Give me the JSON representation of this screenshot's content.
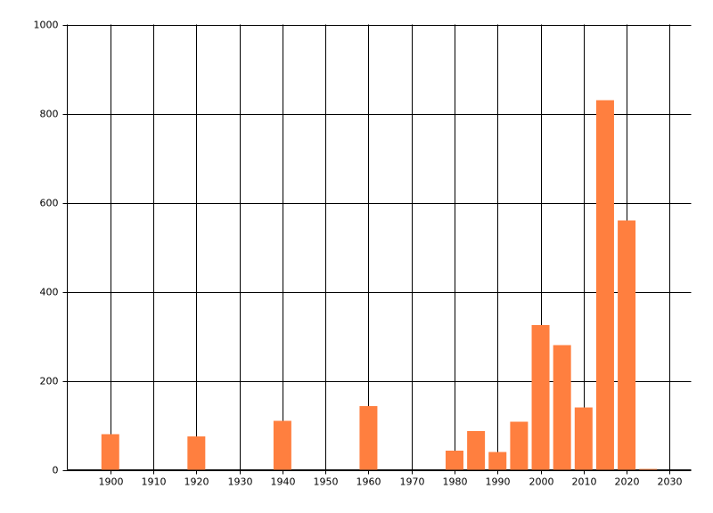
{
  "chart_data": {
    "type": "bar",
    "x": [
      1900,
      1920,
      1940,
      1960,
      1980,
      1985,
      1990,
      1995,
      2000,
      2005,
      2010,
      2015,
      2020,
      2025
    ],
    "values": [
      80,
      75,
      110,
      143,
      43,
      87,
      40,
      108,
      325,
      280,
      140,
      830,
      560,
      2
    ],
    "color": "#ff7f3f",
    "xlim": [
      1890,
      2035
    ],
    "xticks": [
      1900,
      1910,
      1920,
      1930,
      1940,
      1950,
      1960,
      1970,
      1980,
      1990,
      2000,
      2010,
      2020,
      2030
    ],
    "ylim": [
      0,
      1000
    ],
    "yticks": [
      0,
      200,
      400,
      600,
      800,
      1000
    ],
    "grid": true
  }
}
